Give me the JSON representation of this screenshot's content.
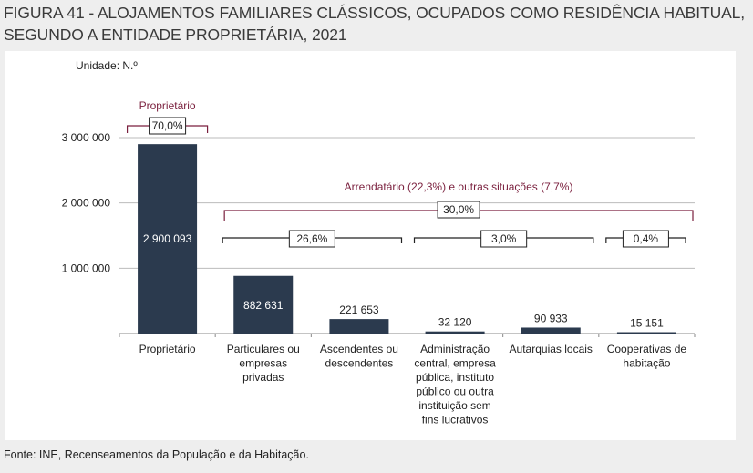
{
  "figure": {
    "title": "FIGURA 41 - ALOJAMENTOS FAMILIARES CLÁSSICOS, OCUPADOS COMO RESIDÊNCIA HABITUAL, SEGUNDO A ENTIDADE PROPRIETÁRIA, 2021",
    "unit": "Unidade: N.º",
    "source": "Fonte: INE, Recenseamentos da População e da Habitação."
  },
  "colors": {
    "bar": "#2b3a4e",
    "annotation": "#7a1f3d",
    "grid": "#bbbbbb",
    "bracket": "#222222"
  },
  "chart_data": {
    "type": "bar",
    "categories": [
      "Proprietário",
      "Particulares ou empresas privadas",
      "Ascendentes ou descendentes",
      "Administração central, empresa pública, instituto público ou outra instituição sem fins lucrativos",
      "Autarquias locais",
      "Cooperativas de habitação"
    ],
    "category_lines": [
      [
        "Proprietário"
      ],
      [
        "Particulares ou",
        "empresas",
        "privadas"
      ],
      [
        "Ascendentes ou",
        "descendentes"
      ],
      [
        "Administração",
        "central, empresa",
        "pública, instituto",
        "público ou outra",
        "instituição sem",
        "fins lucrativos"
      ],
      [
        "Autarquias locais"
      ],
      [
        "Cooperativas de",
        "habitação"
      ]
    ],
    "values": [
      2900093,
      882631,
      221653,
      32120,
      90933,
      15151
    ],
    "data_labels": [
      "2 900 093",
      "882 631",
      "221 653",
      "32 120",
      "90 933",
      "15 151"
    ],
    "label_inside": [
      true,
      true,
      false,
      false,
      false,
      false
    ],
    "ylim": [
      0,
      3000000
    ],
    "yticks": [
      0,
      1000000,
      2000000,
      3000000
    ],
    "ytick_labels": [
      "",
      "1 000 000",
      "2 000 000",
      "3 000 000"
    ],
    "grid": true,
    "annotations": {
      "owner_title": "Proprietário",
      "owner_pct": "70,0%",
      "renter_title": "Arrendatário (22,3%) e outras situações (7,7%)",
      "renter_pct": "30,0%",
      "group_pcts": [
        "26,6%",
        "3,0%",
        "0,4%"
      ]
    }
  }
}
